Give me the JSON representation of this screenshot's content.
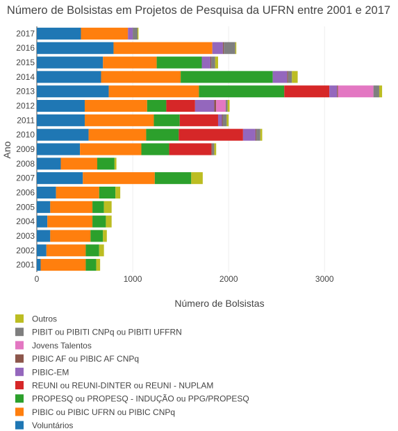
{
  "chart_data": {
    "type": "bar",
    "orientation": "horizontal",
    "stacked": true,
    "title": "Número de Bolsistas em Projetos de Pesquisa da UFRN entre 2001 e 2017",
    "xlabel": "Número de Bolsistas",
    "ylabel": "Ano",
    "xlim": [
      0,
      3650
    ],
    "x_ticks": [
      0,
      1000,
      2000,
      3000
    ],
    "grid": true,
    "legend_position": "bottom",
    "categories": [
      "2001",
      "2002",
      "2003",
      "2004",
      "2005",
      "2006",
      "2007",
      "2008",
      "2009",
      "2010",
      "2011",
      "2012",
      "2013",
      "2014",
      "2015",
      "2016",
      "2017"
    ],
    "series": [
      {
        "name": "Voluntários",
        "color": "#1f77b4",
        "values": [
          40,
          100,
          140,
          110,
          140,
          200,
          480,
          250,
          450,
          540,
          500,
          500,
          750,
          670,
          690,
          800,
          460
        ]
      },
      {
        "name": "PIBIC ou PIBIC UFRN ou PIBIC CNPq",
        "color": "#ff7f0e",
        "values": [
          470,
          410,
          420,
          470,
          440,
          450,
          750,
          380,
          640,
          600,
          720,
          650,
          940,
          830,
          560,
          1030,
          490
        ]
      },
      {
        "name": "PROPESQ ou PROPESQ - INDUÇÃO ou PPG/PROPESQ",
        "color": "#2ca02c",
        "values": [
          110,
          140,
          130,
          140,
          120,
          170,
          380,
          180,
          290,
          340,
          270,
          200,
          890,
          960,
          470,
          0,
          0
        ]
      },
      {
        "name": "REUNI ou REUNI-DINTER ou REUNI - NUPLAM",
        "color": "#d62728",
        "values": [
          0,
          0,
          0,
          0,
          0,
          0,
          0,
          0,
          440,
          670,
          400,
          300,
          470,
          0,
          0,
          0,
          0
        ]
      },
      {
        "name": "PIBIC-EM",
        "color": "#9467bd",
        "values": [
          0,
          0,
          0,
          0,
          0,
          0,
          0,
          0,
          0,
          130,
          40,
          200,
          80,
          150,
          90,
          110,
          50
        ]
      },
      {
        "name": "PIBIC AF ou PIBIC AF CNPq",
        "color": "#8c564b",
        "values": [
          0,
          0,
          0,
          0,
          0,
          0,
          0,
          0,
          10,
          10,
          10,
          20,
          10,
          10,
          10,
          10,
          0
        ]
      },
      {
        "name": "Jovens Talentos",
        "color": "#e377c2",
        "values": [
          0,
          0,
          0,
          0,
          0,
          0,
          0,
          0,
          0,
          0,
          0,
          100,
          370,
          0,
          0,
          0,
          0
        ]
      },
      {
        "name": "PIBIT ou PIBITI CNPq ou PIBITI UFFRN",
        "color": "#7f7f7f",
        "values": [
          0,
          0,
          0,
          0,
          0,
          0,
          0,
          0,
          20,
          40,
          40,
          20,
          60,
          40,
          40,
          120,
          50
        ]
      },
      {
        "name": "Outros",
        "color": "#bcbd22",
        "values": [
          40,
          50,
          40,
          60,
          80,
          50,
          120,
          20,
          20,
          20,
          20,
          20,
          30,
          60,
          30,
          10,
          10
        ]
      }
    ],
    "legend_order": [
      "Outros",
      "PIBIT ou PIBITI CNPq ou PIBITI UFFRN",
      "Jovens Talentos",
      "PIBIC AF ou PIBIC AF CNPq",
      "PIBIC-EM",
      "REUNI ou REUNI-DINTER ou REUNI - NUPLAM",
      "PROPESQ ou PROPESQ - INDUÇÃO ou PPG/PROPESQ",
      "PIBIC ou PIBIC UFRN ou PIBIC CNPq",
      "Voluntários"
    ]
  }
}
